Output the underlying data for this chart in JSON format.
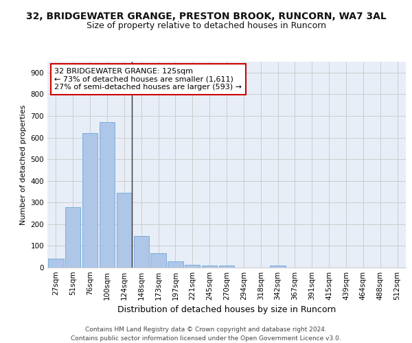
{
  "title_line1": "32, BRIDGEWATER GRANGE, PRESTON BROOK, RUNCORN, WA7 3AL",
  "title_line2": "Size of property relative to detached houses in Runcorn",
  "xlabel": "Distribution of detached houses by size in Runcorn",
  "ylabel": "Number of detached properties",
  "bar_labels": [
    "27sqm",
    "51sqm",
    "76sqm",
    "100sqm",
    "124sqm",
    "148sqm",
    "173sqm",
    "197sqm",
    "221sqm",
    "245sqm",
    "270sqm",
    "294sqm",
    "318sqm",
    "342sqm",
    "367sqm",
    "391sqm",
    "415sqm",
    "439sqm",
    "464sqm",
    "488sqm",
    "512sqm"
  ],
  "bar_values": [
    40,
    280,
    620,
    670,
    345,
    145,
    65,
    28,
    12,
    11,
    10,
    0,
    0,
    8,
    0,
    0,
    0,
    0,
    0,
    0,
    0
  ],
  "bar_color": "#aec6e8",
  "bar_edge_color": "#6fa8d6",
  "property_bin_index": 4,
  "vline_color": "#333333",
  "annotation_text": "32 BRIDGEWATER GRANGE: 125sqm\n← 73% of detached houses are smaller (1,611)\n27% of semi-detached houses are larger (593) →",
  "annotation_box_color": "#ffffff",
  "annotation_box_edge": "#cc0000",
  "ylim": [
    0,
    950
  ],
  "yticks": [
    0,
    100,
    200,
    300,
    400,
    500,
    600,
    700,
    800,
    900
  ],
  "grid_color": "#cccccc",
  "background_color": "#e8eef8",
  "footer_text": "Contains HM Land Registry data © Crown copyright and database right 2024.\nContains public sector information licensed under the Open Government Licence v3.0.",
  "title_fontsize": 10,
  "subtitle_fontsize": 9,
  "xlabel_fontsize": 9,
  "ylabel_fontsize": 8,
  "tick_fontsize": 7.5,
  "annotation_fontsize": 8,
  "footer_fontsize": 6.5
}
